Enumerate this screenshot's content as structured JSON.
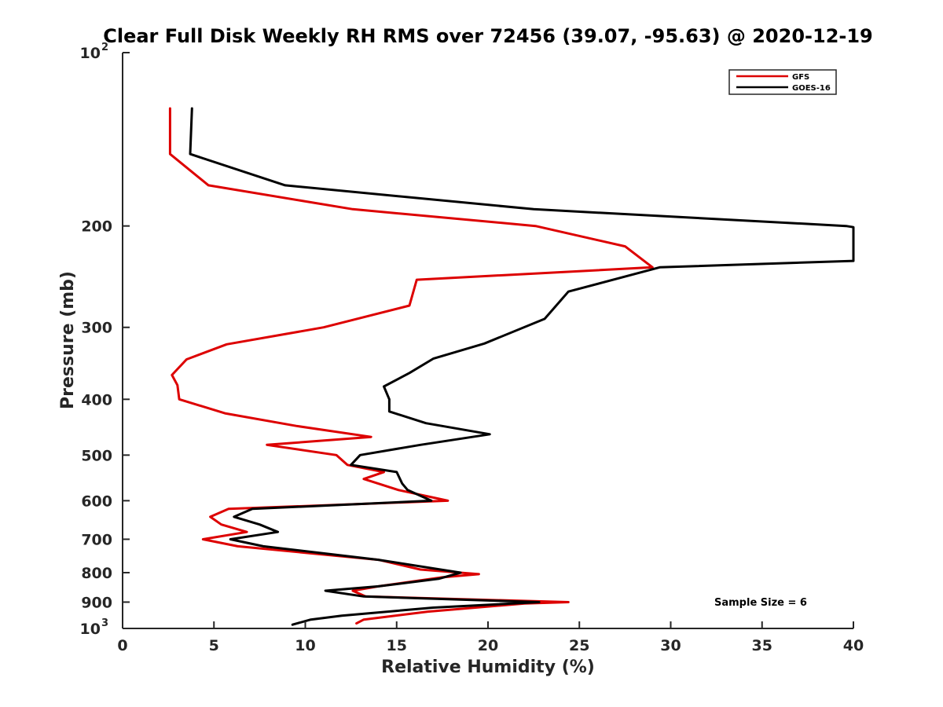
{
  "chart_data": {
    "type": "line",
    "title": "Clear Full Disk Weekly RH RMS over 72456 (39.07, -95.63) @ 2020-12-19",
    "xlabel": "Relative Humidity (%)",
    "ylabel": "Pressure (mb)",
    "xlim": [
      0,
      40
    ],
    "ylim": [
      100,
      1000
    ],
    "yscale": "log",
    "y_reversed": true,
    "x_ticks": [
      "0",
      "5",
      "10",
      "15",
      "20",
      "25",
      "30",
      "35",
      "40"
    ],
    "y_ticks": [
      {
        "value": 100,
        "base": "10",
        "exp": "2"
      },
      {
        "value": 200,
        "label": "200"
      },
      {
        "value": 300,
        "label": "300"
      },
      {
        "value": 400,
        "label": "400"
      },
      {
        "value": 500,
        "label": "500"
      },
      {
        "value": 600,
        "label": "600"
      },
      {
        "value": 700,
        "label": "700"
      },
      {
        "value": 800,
        "label": "800"
      },
      {
        "value": 900,
        "label": "900"
      },
      {
        "value": 1000,
        "base": "10",
        "exp": "3"
      }
    ],
    "legend_position": "top-right",
    "annotation": "Sample Size = 6",
    "series": [
      {
        "name": "GFS",
        "color": "#dd0000",
        "points": [
          [
            2.6,
            125
          ],
          [
            2.6,
            150
          ],
          [
            4.7,
            170
          ],
          [
            12.6,
            187
          ],
          [
            22.6,
            200
          ],
          [
            27.5,
            217
          ],
          [
            29.0,
            236
          ],
          [
            16.1,
            248
          ],
          [
            15.7,
            275
          ],
          [
            11.0,
            300
          ],
          [
            5.7,
            321
          ],
          [
            3.5,
            341
          ],
          [
            2.7,
            363
          ],
          [
            3.0,
            378
          ],
          [
            3.1,
            400
          ],
          [
            5.6,
            423
          ],
          [
            9.5,
            445
          ],
          [
            13.6,
            465
          ],
          [
            7.9,
            480
          ],
          [
            11.7,
            500
          ],
          [
            12.3,
            520
          ],
          [
            14.3,
            535
          ],
          [
            13.2,
            550
          ],
          [
            15.1,
            575
          ],
          [
            17.8,
            600
          ],
          [
            5.8,
            620
          ],
          [
            4.8,
            640
          ],
          [
            5.4,
            660
          ],
          [
            6.8,
            680
          ],
          [
            4.4,
            700
          ],
          [
            6.3,
            720
          ],
          [
            14.0,
            760
          ],
          [
            16.3,
            790
          ],
          [
            19.5,
            805
          ],
          [
            17.5,
            815
          ],
          [
            14.0,
            845
          ],
          [
            12.6,
            860
          ],
          [
            13.3,
            880
          ],
          [
            24.4,
            900
          ],
          [
            22.0,
            905
          ],
          [
            16.7,
            935
          ],
          [
            13.2,
            965
          ],
          [
            12.8,
            980
          ]
        ]
      },
      {
        "name": "GOES-16",
        "color": "#000000",
        "points": [
          [
            3.8,
            125
          ],
          [
            3.7,
            150
          ],
          [
            8.9,
            170
          ],
          [
            22.5,
            187
          ],
          [
            39.6,
            200
          ],
          [
            40.0,
            201
          ],
          [
            40.0,
            230
          ],
          [
            29.4,
            236
          ],
          [
            24.4,
            260
          ],
          [
            23.1,
            290
          ],
          [
            19.8,
            320
          ],
          [
            17.0,
            340
          ],
          [
            15.7,
            360
          ],
          [
            14.3,
            380
          ],
          [
            14.6,
            400
          ],
          [
            14.6,
            420
          ],
          [
            16.6,
            440
          ],
          [
            20.1,
            460
          ],
          [
            16.3,
            480
          ],
          [
            13.0,
            500
          ],
          [
            12.5,
            520
          ],
          [
            15.0,
            535
          ],
          [
            15.3,
            560
          ],
          [
            15.6,
            575
          ],
          [
            16.9,
            600
          ],
          [
            7.1,
            620
          ],
          [
            6.1,
            640
          ],
          [
            7.5,
            660
          ],
          [
            8.5,
            680
          ],
          [
            5.9,
            700
          ],
          [
            7.7,
            720
          ],
          [
            14.0,
            760
          ],
          [
            18.5,
            800
          ],
          [
            17.3,
            820
          ],
          [
            14.0,
            845
          ],
          [
            11.1,
            860
          ],
          [
            13.2,
            880
          ],
          [
            22.8,
            900
          ],
          [
            17.0,
            920
          ],
          [
            12.0,
            950
          ],
          [
            10.3,
            965
          ],
          [
            9.3,
            985
          ]
        ]
      }
    ]
  },
  "colors": {
    "axis": "#262626",
    "gfs": "#dd0000",
    "goes": "#000000",
    "background": "#ffffff"
  }
}
